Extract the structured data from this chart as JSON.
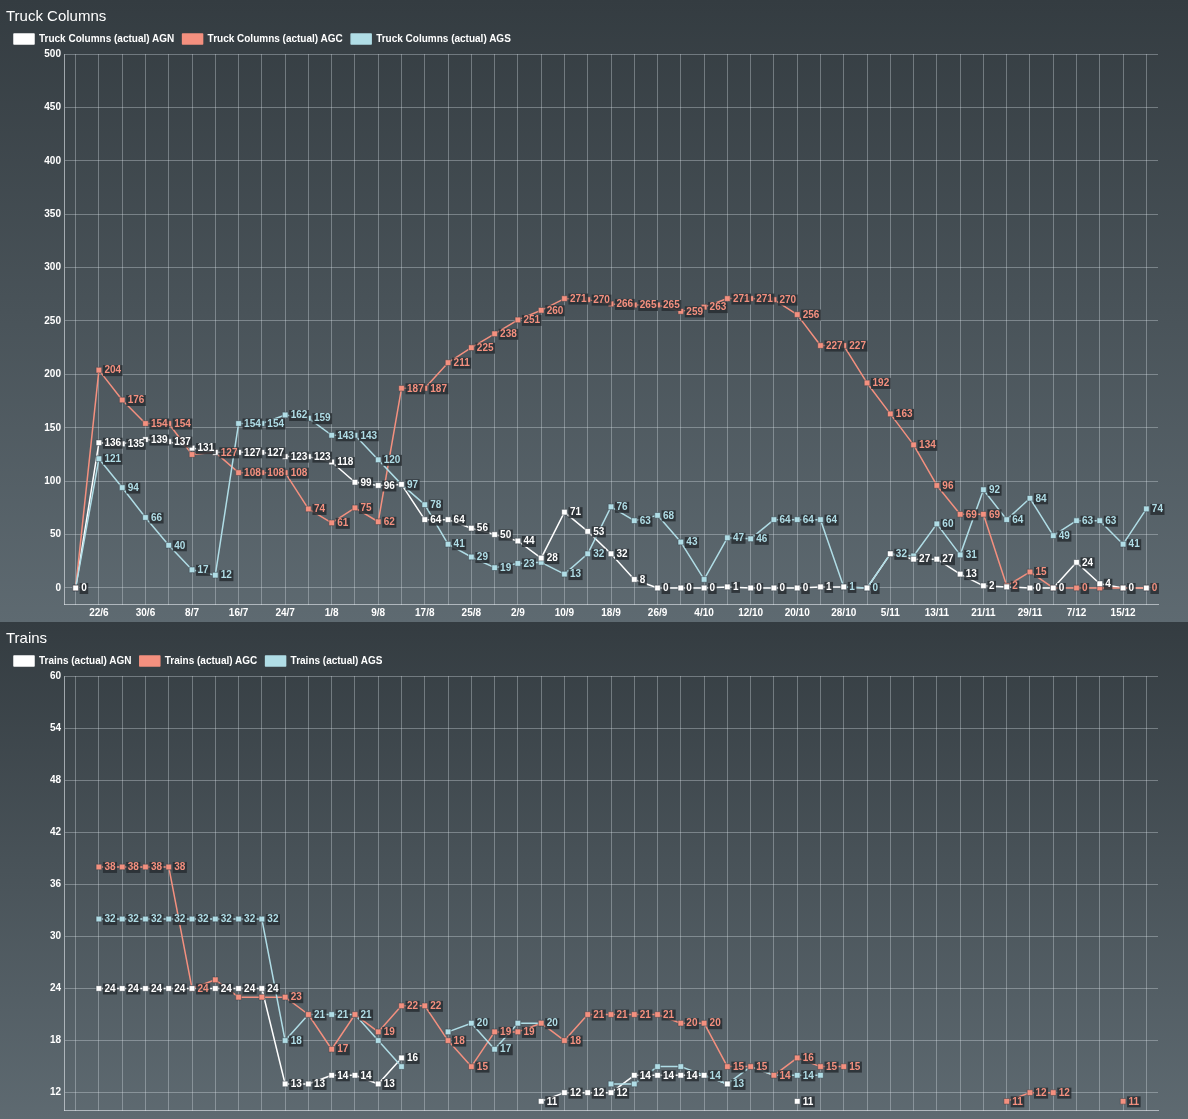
{
  "chart_data": [
    {
      "type": "line",
      "title": "Truck Columns",
      "categories": [
        null,
        "22/6",
        null,
        "30/6",
        null,
        "8/7",
        null,
        "16/7",
        null,
        "24/7",
        null,
        "1/8",
        null,
        "9/8",
        null,
        "17/8",
        null,
        "25/8",
        null,
        "2/9",
        null,
        "10/9",
        null,
        "18/9",
        null,
        "26/9",
        null,
        "4/10",
        null,
        "12/10",
        null,
        "20/10",
        null,
        "28/10",
        null,
        "5/11",
        null,
        "13/11",
        null,
        "21/11",
        null,
        "29/11",
        null,
        "7/12",
        null,
        "15/12",
        null
      ],
      "series": [
        {
          "name": "Truck Columns (actual) AGN",
          "color": "#ffffff",
          "values": [
            0,
            136,
            135,
            139,
            137,
            131,
            127,
            127,
            127,
            123,
            123,
            118,
            99,
            96,
            97,
            64,
            64,
            56,
            50,
            44,
            28,
            71,
            53,
            32,
            8,
            0,
            0,
            0,
            1,
            0,
            0,
            0,
            1,
            1,
            0,
            32,
            27,
            27,
            13,
            2,
            1,
            0,
            0,
            24,
            4,
            0,
            0
          ],
          "value_labels": [
            "0",
            "136",
            "135",
            "139",
            "137",
            "131",
            null,
            "127",
            "127",
            "123",
            "123",
            "118",
            "99",
            "96",
            null,
            "64",
            "64",
            "56",
            "50",
            "44",
            "28",
            "71",
            "53",
            "32",
            "8",
            "0",
            "0",
            "0",
            "1",
            "0",
            "0",
            "0",
            "1",
            null,
            null,
            null,
            "27",
            "27",
            "13",
            "2",
            null,
            "0",
            "0",
            "24",
            "4",
            "0",
            null
          ]
        },
        {
          "name": "Truck Columns (actual) AGC",
          "color": "#f4907f",
          "values": [
            0,
            204,
            176,
            154,
            154,
            125,
            127,
            108,
            108,
            108,
            74,
            61,
            75,
            62,
            187,
            187,
            211,
            225,
            238,
            251,
            260,
            271,
            270,
            266,
            265,
            265,
            259,
            263,
            271,
            271,
            270,
            256,
            227,
            227,
            192,
            163,
            134,
            96,
            69,
            69,
            2,
            15,
            0,
            0,
            0,
            0,
            0
          ],
          "value_labels": [
            null,
            "204",
            "176",
            "154",
            "154",
            null,
            "127",
            "108",
            "108",
            "108",
            "74",
            "61",
            "75",
            "62",
            "187",
            "187",
            "211",
            "225",
            "238",
            "251",
            "260",
            "271",
            "270",
            "266",
            "265",
            "265",
            "259",
            "263",
            "271",
            "271",
            "270",
            "256",
            "227",
            "227",
            "192",
            "163",
            "134",
            "96",
            "69",
            "69",
            "2",
            "15",
            null,
            "0",
            null,
            null,
            "0"
          ]
        },
        {
          "name": "Truck Columns (actual) AGS",
          "color": "#b0dde6",
          "values": [
            0,
            121,
            94,
            66,
            40,
            17,
            12,
            154,
            154,
            162,
            159,
            143,
            143,
            120,
            97,
            78,
            41,
            29,
            19,
            23,
            24,
            13,
            32,
            76,
            63,
            68,
            43,
            8,
            47,
            46,
            64,
            64,
            64,
            1,
            0,
            32,
            30,
            60,
            31,
            92,
            64,
            84,
            49,
            63,
            63,
            41,
            74
          ],
          "value_labels": [
            null,
            "121",
            "94",
            "66",
            "40",
            "17",
            "12",
            "154",
            "154",
            "162",
            "159",
            "143",
            "143",
            "120",
            "97",
            "78",
            "41",
            "29",
            "19",
            "23",
            null,
            "13",
            "32",
            "76",
            "63",
            "68",
            "43",
            null,
            "47",
            "46",
            "64",
            "64",
            "64",
            "1",
            "0",
            "32",
            null,
            "60",
            "31",
            "92",
            "64",
            "84",
            "49",
            "63",
            "63",
            "41",
            "74"
          ]
        }
      ],
      "ylim": [
        -15,
        500
      ],
      "yticks": [
        0,
        50,
        100,
        150,
        200,
        250,
        300,
        350,
        400,
        450,
        500
      ],
      "grid": true,
      "legend": "top left",
      "marker": "square",
      "line_style": "solid"
    },
    {
      "type": "line",
      "title": "Trains",
      "categories": [
        null,
        null,
        null,
        null,
        null,
        null,
        null,
        null,
        null,
        null,
        null,
        null,
        null,
        null,
        null,
        null,
        null,
        null,
        null,
        null,
        null,
        null,
        null,
        null,
        null,
        null,
        null,
        null,
        null,
        null,
        null,
        null,
        null,
        null,
        null,
        null,
        null,
        null,
        null,
        null,
        null,
        null,
        null,
        null,
        null,
        null,
        null
      ],
      "series": [
        {
          "name": "Trains (actual) AGN",
          "color": "#ffffff",
          "values": [
            null,
            24,
            24,
            24,
            24,
            24,
            24,
            24,
            24,
            13,
            13,
            14,
            14,
            13,
            16,
            null,
            null,
            null,
            null,
            null,
            11,
            12,
            12,
            12,
            14,
            14,
            14,
            14,
            13,
            null,
            null,
            11,
            null,
            null,
            null,
            null,
            null,
            null,
            null,
            null,
            null,
            null,
            null,
            null,
            null,
            null,
            null
          ],
          "value_labels": [
            null,
            "24",
            "24",
            "24",
            "24",
            null,
            "24",
            "24",
            "24",
            "13",
            "13",
            "14",
            "14",
            "13",
            "16",
            null,
            null,
            null,
            null,
            null,
            "11",
            "12",
            "12",
            "12",
            "14",
            "14",
            "14",
            null,
            null,
            null,
            null,
            "11",
            null,
            null,
            null,
            null,
            null,
            null,
            null,
            null,
            null,
            null,
            null,
            null,
            null,
            null,
            null
          ]
        },
        {
          "name": "Trains (actual) AGC",
          "color": "#f4907f",
          "values": [
            null,
            38,
            38,
            38,
            38,
            24,
            25,
            23,
            23,
            23,
            21,
            17,
            21,
            19,
            22,
            22,
            18,
            15,
            19,
            19,
            20,
            18,
            21,
            21,
            21,
            21,
            20,
            20,
            15,
            15,
            14,
            16,
            15,
            15,
            null,
            null,
            null,
            null,
            null,
            null,
            11,
            12,
            12,
            null,
            null,
            11,
            null
          ],
          "value_labels": [
            null,
            "38",
            "38",
            "38",
            "38",
            "24",
            null,
            null,
            null,
            "23",
            null,
            "17",
            null,
            "19",
            "22",
            "22",
            "18",
            "15",
            "19",
            "19",
            null,
            "18",
            "21",
            "21",
            "21",
            "21",
            "20",
            "20",
            "15",
            "15",
            "14",
            "16",
            "15",
            "15",
            null,
            null,
            null,
            null,
            null,
            null,
            "11",
            "12",
            "12",
            null,
            null,
            "11",
            null
          ]
        },
        {
          "name": "Trains (actual) AGS",
          "color": "#b0dde6",
          "values": [
            null,
            32,
            32,
            32,
            32,
            32,
            32,
            32,
            32,
            18,
            21,
            21,
            21,
            18,
            15,
            null,
            19,
            20,
            17,
            20,
            20,
            null,
            null,
            13,
            13,
            15,
            15,
            14,
            13,
            15,
            14,
            14,
            14,
            null,
            null,
            null,
            null,
            null,
            null,
            null,
            null,
            null,
            null,
            null,
            null,
            null,
            null
          ],
          "value_labels": [
            null,
            "32",
            "32",
            "32",
            "32",
            "32",
            "32",
            "32",
            "32",
            "18",
            "21",
            "21",
            "21",
            null,
            null,
            null,
            null,
            "20",
            "17",
            null,
            "20",
            null,
            null,
            null,
            null,
            null,
            null,
            "14",
            "13",
            null,
            null,
            "14",
            null,
            null,
            null,
            null,
            null,
            null,
            null,
            null,
            null,
            null,
            null,
            null,
            null,
            null,
            null
          ]
        }
      ],
      "ylim": [
        10,
        60
      ],
      "yticks": [
        12,
        18,
        24,
        30,
        36,
        42,
        48,
        54,
        60
      ],
      "grid": true,
      "legend": "top left",
      "marker": "square",
      "line_style": "solid",
      "tick_labels": "y"
    }
  ]
}
